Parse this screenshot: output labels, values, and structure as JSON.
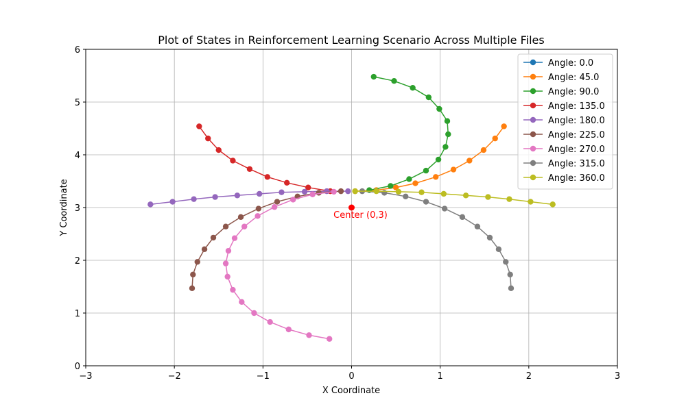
{
  "chart_data": {
    "type": "line",
    "title": "Plot of States in Reinforcement Learning Scenario Across Multiple Files",
    "xlabel": "X Coordinate",
    "ylabel": "Y Coordinate",
    "xlim": [
      -3,
      3
    ],
    "ylim": [
      0,
      6
    ],
    "xticks": [
      -3,
      -2,
      -1,
      0,
      1,
      2,
      3
    ],
    "yticks": [
      0,
      1,
      2,
      3,
      4,
      5,
      6
    ],
    "xtick_labels": [
      "−3",
      "−2",
      "−1",
      "0",
      "1",
      "2",
      "3"
    ],
    "ytick_labels": [
      "0",
      "1",
      "2",
      "3",
      "4",
      "5",
      "6"
    ],
    "grid": true,
    "legend_position": "top-right",
    "annotation": {
      "text": "Center (0,3)",
      "x": 0,
      "y": 3,
      "color": "#ff0000"
    },
    "series": [
      {
        "name": "Angle: 0.0",
        "color": "#1f77b4",
        "points": []
      },
      {
        "name": "Angle: 45.0",
        "color": "#ff7f0e",
        "points": [
          [
            0.04,
            3.31
          ],
          [
            0.28,
            3.33
          ],
          [
            0.5,
            3.38
          ],
          [
            0.72,
            3.46
          ],
          [
            0.95,
            3.58
          ],
          [
            1.15,
            3.72
          ],
          [
            1.33,
            3.89
          ],
          [
            1.49,
            4.09
          ],
          [
            1.62,
            4.31
          ],
          [
            1.72,
            4.54
          ]
        ]
      },
      {
        "name": "Angle: 90.0",
        "color": "#2ca02c",
        "points": [
          [
            0.2,
            3.33
          ],
          [
            0.44,
            3.41
          ],
          [
            0.65,
            3.54
          ],
          [
            0.84,
            3.7
          ],
          [
            0.98,
            3.91
          ],
          [
            1.06,
            4.15
          ],
          [
            1.09,
            4.39
          ],
          [
            1.08,
            4.64
          ],
          [
            0.99,
            4.87
          ],
          [
            0.87,
            5.09
          ],
          [
            0.69,
            5.27
          ],
          [
            0.48,
            5.4
          ],
          [
            0.25,
            5.48
          ]
        ]
      },
      {
        "name": "Angle: 135.0",
        "color": "#d62728",
        "points": [
          [
            -0.24,
            3.31
          ],
          [
            -0.49,
            3.38
          ],
          [
            -0.73,
            3.47
          ],
          [
            -0.95,
            3.58
          ],
          [
            -1.15,
            3.73
          ],
          [
            -1.34,
            3.89
          ],
          [
            -1.5,
            4.09
          ],
          [
            -1.62,
            4.31
          ],
          [
            -1.72,
            4.54
          ]
        ]
      },
      {
        "name": "Angle: 180.0",
        "color": "#9467bd",
        "points": [
          [
            -0.04,
            3.31
          ],
          [
            -0.28,
            3.31
          ],
          [
            -0.53,
            3.3
          ],
          [
            -0.79,
            3.29
          ],
          [
            -1.04,
            3.26
          ],
          [
            -1.29,
            3.23
          ],
          [
            -1.54,
            3.2
          ],
          [
            -1.78,
            3.16
          ],
          [
            -2.02,
            3.11
          ],
          [
            -2.27,
            3.06
          ]
        ]
      },
      {
        "name": "Angle: 225.0",
        "color": "#8c564b",
        "points": [
          [
            -0.12,
            3.31
          ],
          [
            -0.37,
            3.28
          ],
          [
            -0.61,
            3.21
          ],
          [
            -0.84,
            3.11
          ],
          [
            -1.05,
            2.98
          ],
          [
            -1.25,
            2.82
          ],
          [
            -1.42,
            2.64
          ],
          [
            -1.56,
            2.43
          ],
          [
            -1.66,
            2.21
          ],
          [
            -1.74,
            1.97
          ],
          [
            -1.79,
            1.73
          ],
          [
            -1.8,
            1.47
          ]
        ]
      },
      {
        "name": "Angle: 270.0",
        "color": "#e377c2",
        "points": [
          [
            -0.2,
            3.3
          ],
          [
            -0.44,
            3.25
          ],
          [
            -0.66,
            3.15
          ],
          [
            -0.87,
            3.01
          ],
          [
            -1.06,
            2.84
          ],
          [
            -1.21,
            2.64
          ],
          [
            -1.32,
            2.42
          ],
          [
            -1.39,
            2.18
          ],
          [
            -1.42,
            1.94
          ],
          [
            -1.4,
            1.69
          ],
          [
            -1.34,
            1.44
          ],
          [
            -1.24,
            1.21
          ],
          [
            -1.1,
            1.0
          ],
          [
            -0.92,
            0.83
          ],
          [
            -0.71,
            0.69
          ],
          [
            -0.48,
            0.58
          ],
          [
            -0.25,
            0.51
          ]
        ]
      },
      {
        "name": "Angle: 315.0",
        "color": "#7f7f7f",
        "points": [
          [
            0.12,
            3.31
          ],
          [
            0.37,
            3.28
          ],
          [
            0.61,
            3.21
          ],
          [
            0.84,
            3.11
          ],
          [
            1.05,
            2.98
          ],
          [
            1.25,
            2.82
          ],
          [
            1.42,
            2.64
          ],
          [
            1.56,
            2.43
          ],
          [
            1.66,
            2.21
          ],
          [
            1.74,
            1.97
          ],
          [
            1.79,
            1.73
          ],
          [
            1.8,
            1.47
          ]
        ]
      },
      {
        "name": "Angle: 360.0",
        "color": "#bcbd22",
        "points": [
          [
            0.04,
            3.31
          ],
          [
            0.28,
            3.31
          ],
          [
            0.53,
            3.3
          ],
          [
            0.79,
            3.29
          ],
          [
            1.04,
            3.26
          ],
          [
            1.29,
            3.23
          ],
          [
            1.54,
            3.2
          ],
          [
            1.78,
            3.16
          ],
          [
            2.02,
            3.11
          ],
          [
            2.27,
            3.06
          ]
        ]
      }
    ]
  }
}
